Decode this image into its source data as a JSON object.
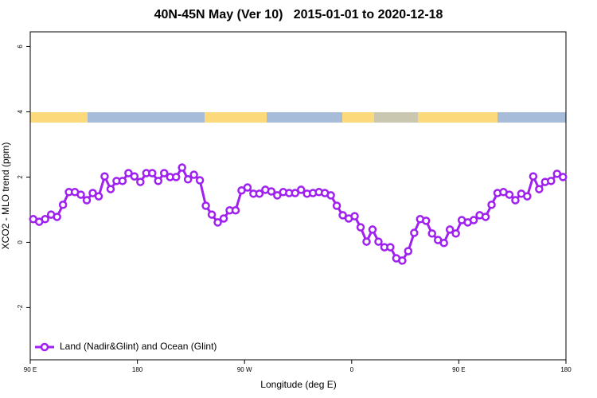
{
  "chart_data": {
    "type": "line",
    "title": "40N-45N May (Ver 10)   2015-01-01 to 2020-12-18",
    "x_label": "Longitude (deg E)",
    "y_label": "XCO2 - MLO trend (ppm)",
    "xlim": [
      90,
      540
    ],
    "xticks": [
      {
        "value": 90,
        "label": "90 E"
      },
      180,
      {
        "value": 270,
        "label": "90 W"
      },
      {
        "value": 360,
        "label": "0"
      },
      {
        "value": 450,
        "label": "90 E"
      },
      {
        "value": 540,
        "label": "180"
      }
    ],
    "ylim": [
      -3.6,
      6.45
    ],
    "yticks": [
      -2,
      0,
      2,
      4,
      6
    ],
    "legend": "bottom-left",
    "x": [
      92.5,
      97.5,
      102.5,
      107.5,
      112.5,
      117.5,
      122.5,
      127.5,
      132.5,
      137.5,
      142.5,
      147.5,
      152.5,
      157.5,
      162.5,
      167.5,
      172.5,
      177.5,
      182.5,
      187.5,
      192.5,
      197.5,
      202.5,
      207.5,
      212.5,
      217.5,
      222.5,
      227.5,
      232.5,
      237.5,
      242.5,
      247.5,
      252.5,
      257.5,
      262.5,
      267.5,
      272.5,
      277.5,
      282.5,
      287.5,
      292.5,
      297.5,
      302.5,
      307.5,
      312.5,
      317.5,
      322.5,
      327.5,
      332.5,
      337.5,
      342.5,
      347.5,
      352.5,
      357.5,
      362.5,
      367.5,
      372.5,
      377.5,
      382.5,
      387.5,
      392.5,
      397.5,
      402.5,
      407.5,
      412.5,
      417.5,
      422.5,
      427.5,
      432.5,
      437.5,
      442.5,
      447.5,
      452.5,
      457.5,
      462.5,
      467.5,
      472.5,
      477.5,
      482.5,
      487.5,
      492.5,
      497.5,
      502.5,
      507.5,
      512.5,
      517.5,
      522.5,
      527.5,
      532.5,
      537.5
    ],
    "series": [
      {
        "name": "Land (Nadir&Glint) and Ocean (Glint)",
        "color": "#a020f0",
        "values": [
          0.71,
          0.63,
          0.71,
          0.85,
          0.78,
          1.15,
          1.54,
          1.54,
          1.46,
          1.29,
          1.51,
          1.41,
          2.02,
          1.63,
          1.88,
          1.88,
          2.12,
          2.02,
          1.85,
          2.12,
          2.12,
          1.88,
          2.12,
          2.0,
          2.0,
          2.29,
          1.93,
          2.07,
          1.9,
          1.12,
          0.85,
          0.61,
          0.73,
          0.98,
          0.98,
          1.59,
          1.68,
          1.49,
          1.49,
          1.61,
          1.56,
          1.44,
          1.54,
          1.51,
          1.51,
          1.61,
          1.49,
          1.51,
          1.54,
          1.51,
          1.44,
          1.12,
          0.83,
          0.73,
          0.8,
          0.46,
          0.02,
          0.39,
          0.02,
          -0.15,
          -0.15,
          -0.49,
          -0.56,
          -0.27,
          0.29,
          0.71,
          0.66,
          0.27,
          0.07,
          -0.02,
          0.39,
          0.27,
          0.68,
          0.61,
          0.68,
          0.83,
          0.78,
          1.15,
          1.51,
          1.54,
          1.46,
          1.29,
          1.49,
          1.41,
          2.02,
          1.63,
          1.85,
          1.88,
          2.1,
          2.0
        ]
      }
    ]
  }
}
